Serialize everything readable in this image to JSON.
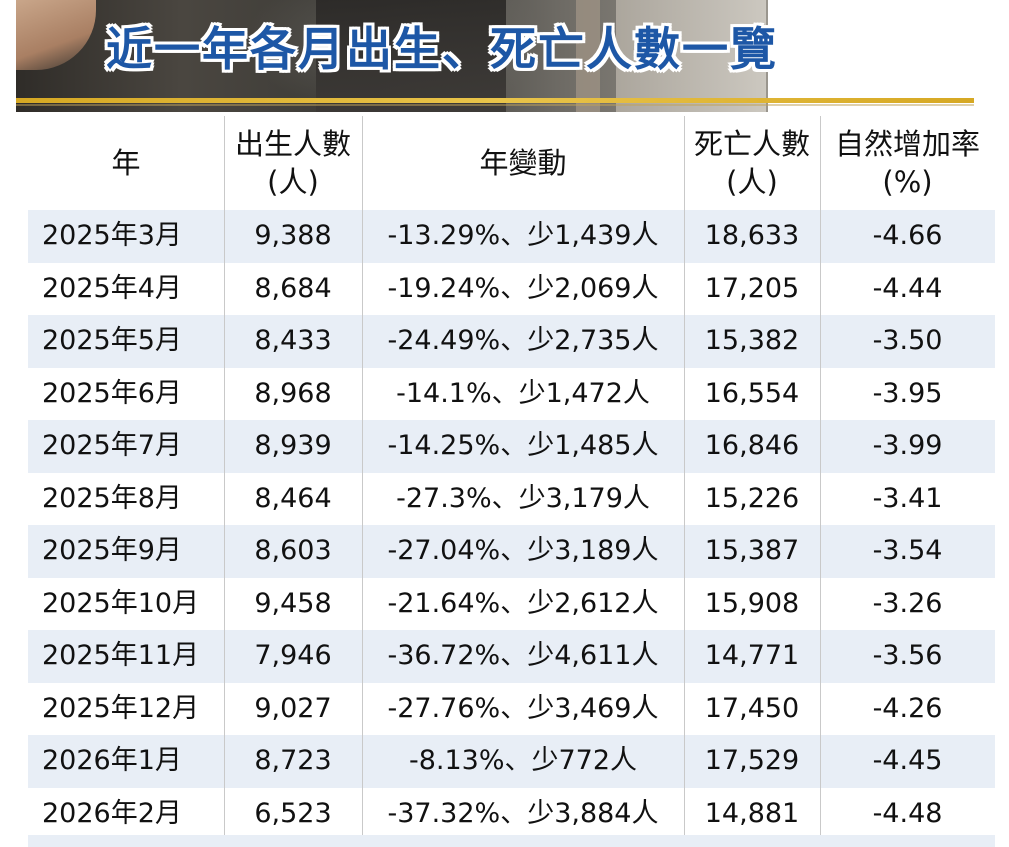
{
  "title": "近一年各月出生、死亡人數一覽",
  "colors": {
    "title": "#1d57a6",
    "accent_line": "#d6a823",
    "row_alt": "#e8eef6",
    "divider": "#c9c9c9"
  },
  "headers": {
    "year": [
      "年"
    ],
    "births": [
      "出生人數",
      "(人)"
    ],
    "change": [
      "年變動"
    ],
    "deaths": [
      "死亡人數",
      "(人)"
    ],
    "rate": [
      "自然增加率",
      "(%)"
    ]
  },
  "chart_data": {
    "type": "table",
    "title": "近一年各月出生、死亡人數一覽",
    "columns": [
      "年",
      "出生人數(人)",
      "年變動",
      "死亡人數(人)",
      "自然增加率(%)"
    ],
    "rows": [
      [
        "2025年3月",
        "9,388",
        "-13.29%、少1,439人",
        "18,633",
        "-4.66"
      ],
      [
        "2025年4月",
        "8,684",
        "-19.24%、少2,069人",
        "17,205",
        "-4.44"
      ],
      [
        "2025年5月",
        "8,433",
        "-24.49%、少2,735人",
        "15,382",
        "-3.50"
      ],
      [
        "2025年6月",
        "8,968",
        "-14.1%、少1,472人",
        "16,554",
        "-3.95"
      ],
      [
        "2025年7月",
        "8,939",
        "-14.25%、少1,485人",
        "16,846",
        "-3.99"
      ],
      [
        "2025年8月",
        "8,464",
        "-27.3%、少3,179人",
        "15,226",
        "-3.41"
      ],
      [
        "2025年9月",
        "8,603",
        "-27.04%、少3,189人",
        "15,387",
        "-3.54"
      ],
      [
        "2025年10月",
        "9,458",
        "-21.64%、少2,612人",
        "15,908",
        "-3.26"
      ],
      [
        "2025年11月",
        "7,946",
        "-36.72%、少4,611人",
        "14,771",
        "-3.56"
      ],
      [
        "2025年12月",
        "9,027",
        "-27.76%、少3,469人",
        "17,450",
        "-4.26"
      ],
      [
        "2026年1月",
        "8,723",
        "-8.13%、少772人",
        "17,529",
        "-4.45"
      ],
      [
        "2026年2月",
        "6,523",
        "-37.32%、少3,884人",
        "14,881",
        "-4.48"
      ]
    ]
  }
}
